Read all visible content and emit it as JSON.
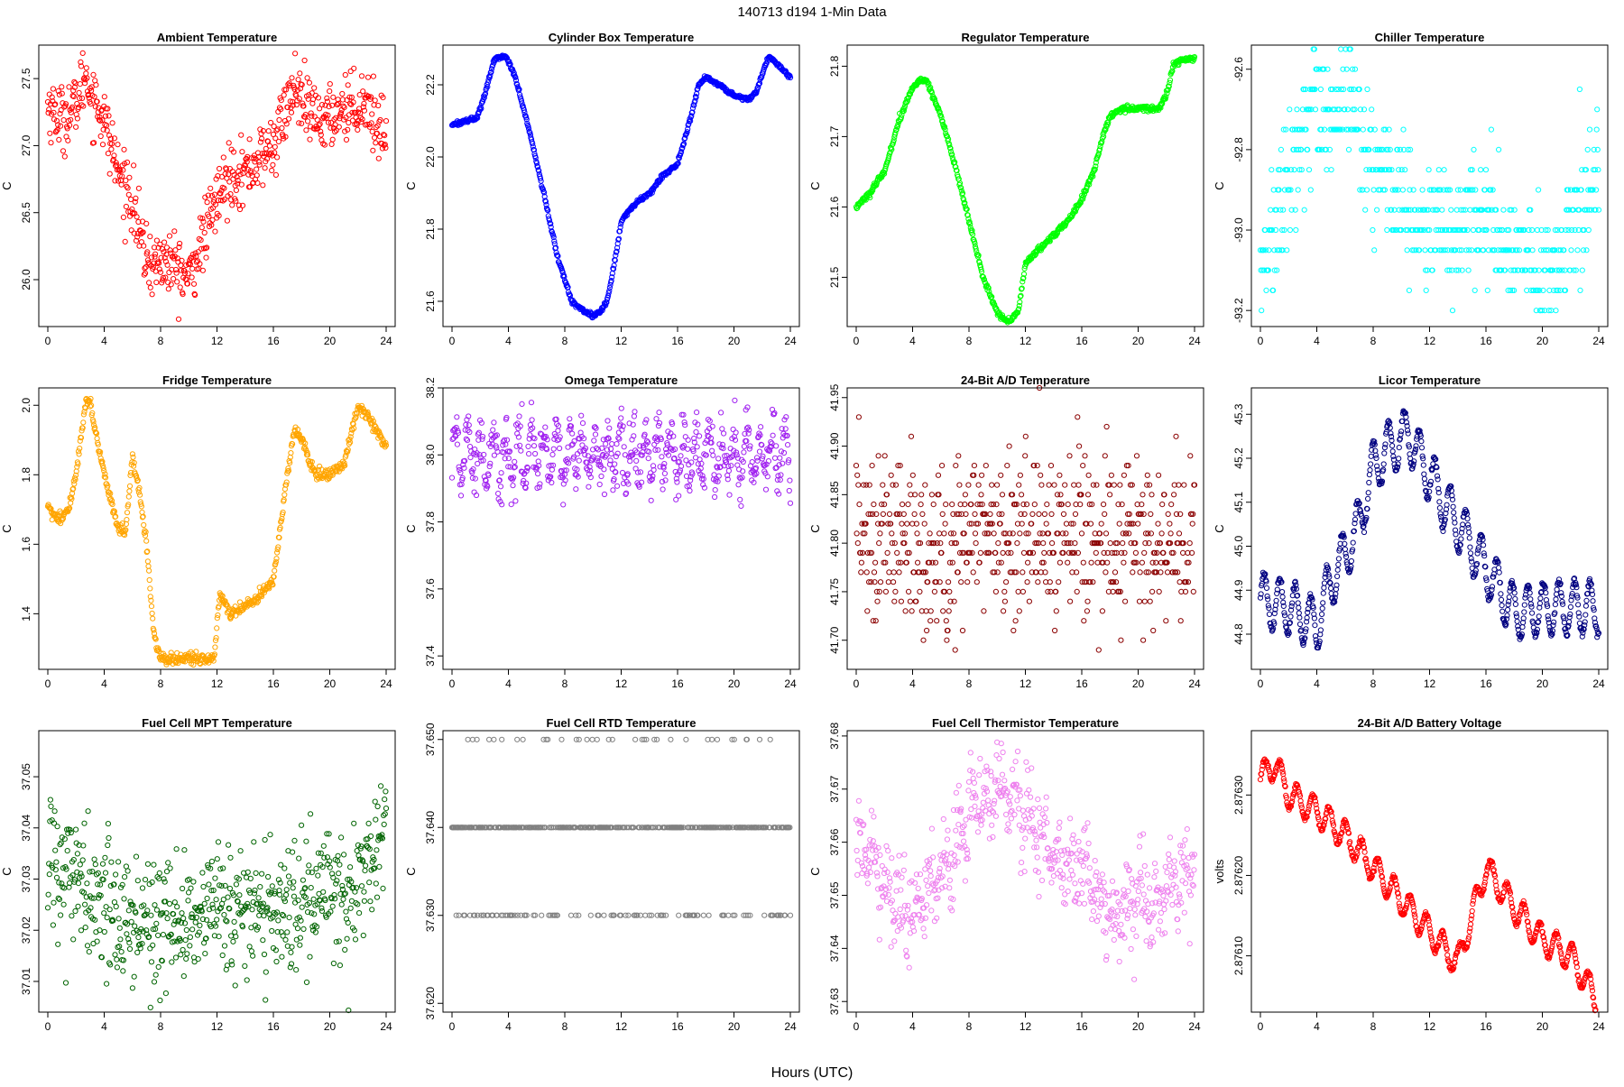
{
  "figure": {
    "title": "140713   d194   1-Min Data",
    "xlabel": "Hours (UTC)"
  },
  "chart_data": [
    {
      "type": "scatter",
      "title": "Ambient Temperature",
      "ylabel": "C",
      "color": "#ff0000",
      "xlim": [
        0,
        24
      ],
      "ylim": [
        25.65,
        27.75
      ],
      "xticks": [
        0,
        4,
        8,
        12,
        16,
        20,
        24
      ],
      "yticks": [
        26.0,
        26.5,
        27.0,
        27.5
      ],
      "ytick_labels": [
        "26.0",
        "26.5",
        "27.0",
        "27.5"
      ],
      "x": [
        0,
        1,
        2,
        2.7,
        3,
        4,
        5,
        6,
        6.8,
        7.5,
        8,
        9,
        10,
        11,
        12,
        13,
        14,
        15,
        16,
        17,
        17.6,
        18,
        19,
        20,
        21,
        22,
        22.7,
        23,
        24
      ],
      "y": [
        27.3,
        27.2,
        27.3,
        27.55,
        27.4,
        27.2,
        26.8,
        26.6,
        26.2,
        26.1,
        26.15,
        26.1,
        26.0,
        26.3,
        26.6,
        26.8,
        26.8,
        26.9,
        27.0,
        27.3,
        27.45,
        27.3,
        27.2,
        27.2,
        27.3,
        27.3,
        27.35,
        27.2,
        27.1
      ],
      "noise": 0.12
    },
    {
      "type": "scatter",
      "title": "Cylinder Box Temperature",
      "ylabel": "C",
      "color": "#0000ff",
      "xlim": [
        0,
        24
      ],
      "ylim": [
        21.53,
        22.31
      ],
      "xticks": [
        0,
        4,
        8,
        12,
        16,
        20,
        24
      ],
      "yticks": [
        21.6,
        21.8,
        22.0,
        22.2
      ],
      "ytick_labels": [
        "21.6",
        "21.8",
        "22.0",
        "22.2"
      ],
      "x": [
        0,
        1,
        1.8,
        2.3,
        3,
        3.8,
        4.5,
        5.5,
        6.5,
        7.5,
        8.5,
        9.5,
        10,
        10.5,
        11,
        11.5,
        12,
        12.5,
        13,
        14,
        15,
        16,
        17,
        17.5,
        18,
        19,
        20,
        21,
        21.6,
        22,
        22.5,
        23,
        23.5,
        24
      ],
      "y": [
        22.09,
        22.1,
        22.11,
        22.17,
        22.27,
        22.28,
        22.22,
        22.07,
        21.9,
        21.72,
        21.6,
        21.57,
        21.56,
        21.57,
        21.6,
        21.7,
        21.82,
        21.85,
        21.87,
        21.9,
        21.95,
        21.98,
        22.12,
        22.2,
        22.22,
        22.2,
        22.17,
        22.16,
        22.18,
        22.23,
        22.28,
        22.26,
        22.24,
        22.22
      ],
      "noise": 0.003
    },
    {
      "type": "scatter",
      "title": "Regulator Temperature",
      "ylabel": "C",
      "color": "#00ff00",
      "xlim": [
        0,
        24
      ],
      "ylim": [
        21.43,
        21.83
      ],
      "xticks": [
        0,
        4,
        8,
        12,
        16,
        20,
        24
      ],
      "yticks": [
        21.5,
        21.6,
        21.7,
        21.8
      ],
      "ytick_labels": [
        "21.5",
        "21.6",
        "21.7",
        "21.8"
      ],
      "x": [
        0,
        1,
        2,
        3,
        4,
        4.5,
        5,
        6,
        7,
        8,
        9,
        10,
        10.5,
        11,
        11.5,
        12,
        13,
        14,
        15,
        16,
        17,
        17.5,
        18,
        19,
        20,
        21,
        21.5,
        22,
        22.5,
        23,
        24
      ],
      "y": [
        21.6,
        21.62,
        21.65,
        21.72,
        21.77,
        21.78,
        21.78,
        21.73,
        21.66,
        21.58,
        21.5,
        21.45,
        21.44,
        21.44,
        21.45,
        21.52,
        21.54,
        21.56,
        21.58,
        21.61,
        21.66,
        21.7,
        21.73,
        21.74,
        21.74,
        21.74,
        21.74,
        21.76,
        21.8,
        21.81,
        21.81
      ],
      "noise": 0.002
    },
    {
      "type": "scatter",
      "title": "Chiller Temperature",
      "ylabel": "C",
      "color": "#00ffff",
      "xlim": [
        0,
        24
      ],
      "ylim": [
        -93.24,
        -92.54
      ],
      "xticks": [
        0,
        4,
        8,
        12,
        16,
        20,
        24
      ],
      "yticks": [
        -93.2,
        -93.0,
        -92.8,
        -92.6
      ],
      "ytick_labels": [
        "-93.2",
        "-93.0",
        "-92.8",
        "-92.6"
      ],
      "x": [
        0,
        1,
        2,
        3,
        4,
        5,
        6,
        7,
        8,
        9,
        10,
        11,
        12,
        13,
        14,
        15,
        16,
        17,
        18,
        19,
        20,
        21,
        22,
        23,
        24
      ],
      "y": [
        -93.1,
        -93.0,
        -92.9,
        -92.75,
        -92.7,
        -92.75,
        -92.65,
        -92.7,
        -92.85,
        -92.9,
        -92.9,
        -93.0,
        -93.0,
        -93.0,
        -93.0,
        -92.95,
        -93.0,
        -93.0,
        -93.05,
        -93.1,
        -93.15,
        -93.1,
        -93.0,
        -92.9,
        -92.85
      ],
      "noise": 0.08,
      "quantize": 0.05
    },
    {
      "type": "scatter",
      "title": "Fridge Temperature",
      "ylabel": "C",
      "color": "#ffa500",
      "xlim": [
        0,
        24
      ],
      "ylim": [
        1.24,
        2.05
      ],
      "xticks": [
        0,
        4,
        8,
        12,
        16,
        20,
        24
      ],
      "yticks": [
        1.4,
        1.6,
        1.8,
        2.0
      ],
      "ytick_labels": [
        "1.4",
        "1.6",
        "1.8",
        "2.0"
      ],
      "x": [
        0,
        0.7,
        1.5,
        2,
        2.7,
        3,
        3.6,
        4.3,
        5,
        5.5,
        6,
        6.5,
        7,
        7.5,
        8,
        9,
        10,
        11,
        11.8,
        12.2,
        13,
        14,
        15,
        16,
        17,
        17.5,
        18,
        19,
        20,
        21,
        22,
        22.5,
        23,
        24
      ],
      "y": [
        1.71,
        1.67,
        1.7,
        1.8,
        2.02,
        2.0,
        1.88,
        1.75,
        1.65,
        1.63,
        1.85,
        1.75,
        1.6,
        1.35,
        1.27,
        1.27,
        1.27,
        1.27,
        1.27,
        1.46,
        1.4,
        1.42,
        1.45,
        1.5,
        1.8,
        1.93,
        1.9,
        1.8,
        1.8,
        1.83,
        2.0,
        1.98,
        1.95,
        1.88
      ],
      "noise": 0.008
    },
    {
      "type": "scatter",
      "title": "Omega Temperature",
      "ylabel": "C",
      "color": "#a020f0",
      "xlim": [
        0,
        24
      ],
      "ylim": [
        37.36,
        38.2
      ],
      "xticks": [
        0,
        4,
        8,
        12,
        16,
        20,
        24
      ],
      "yticks": [
        37.4,
        37.6,
        37.8,
        38.0,
        38.2
      ],
      "ytick_labels": [
        "37.4",
        "37.6",
        "37.8",
        "38.0",
        "38.2"
      ],
      "x": [
        0,
        2,
        4,
        6,
        8,
        10,
        12,
        14,
        16,
        18,
        20,
        22,
        24
      ],
      "y": [
        38.0,
        38.0,
        38.0,
        38.0,
        38.0,
        38.0,
        38.0,
        38.0,
        38.0,
        38.0,
        38.0,
        38.0,
        38.0
      ],
      "noise": 0.04,
      "osc_amp": 0.07,
      "osc_period": 0.9
    },
    {
      "type": "scatter",
      "title": "24-Bit A/D Temperature",
      "ylabel": "C",
      "color": "#8b0000",
      "xlim": [
        0,
        24
      ],
      "ylim": [
        41.67,
        41.96
      ],
      "xticks": [
        0,
        4,
        8,
        12,
        16,
        20,
        24
      ],
      "yticks": [
        41.7,
        41.75,
        41.8,
        41.85,
        41.9,
        41.95
      ],
      "ytick_labels": [
        "41.70",
        "41.75",
        "41.80",
        "41.85",
        "41.90",
        "41.95"
      ],
      "x": [
        0,
        4,
        8,
        12,
        16,
        20,
        24
      ],
      "y": [
        41.8,
        41.8,
        41.8,
        41.81,
        41.81,
        41.8,
        41.8
      ],
      "noise": 0.045,
      "quantize": 0.01
    },
    {
      "type": "scatter",
      "title": "Licor Temperature",
      "ylabel": "C",
      "color": "#000080",
      "xlim": [
        0,
        24
      ],
      "ylim": [
        44.72,
        45.36
      ],
      "xticks": [
        0,
        4,
        8,
        12,
        16,
        20,
        24
      ],
      "yticks": [
        44.8,
        44.9,
        45.0,
        45.1,
        45.2,
        45.3
      ],
      "ytick_labels": [
        "44.8",
        "44.9",
        "45.0",
        "45.1",
        "45.2",
        "45.3"
      ],
      "x": [
        0,
        2,
        4,
        5,
        6,
        7,
        8,
        9,
        10,
        10.5,
        11,
        12,
        13,
        14,
        15,
        16,
        17,
        18,
        19,
        20,
        22,
        24
      ],
      "y": [
        44.88,
        44.86,
        44.82,
        44.92,
        44.98,
        45.05,
        45.18,
        45.22,
        45.24,
        45.26,
        45.22,
        45.16,
        45.1,
        45.05,
        45.0,
        44.95,
        44.9,
        44.85,
        44.85,
        44.86,
        44.86,
        44.86
      ],
      "noise": 0.004,
      "osc_amp": 0.06,
      "osc_period": 1.1
    },
    {
      "type": "scatter",
      "title": "Fuel Cell MPT Temperature",
      "ylabel": "C",
      "color": "#006400",
      "xlim": [
        0,
        24
      ],
      "ylim": [
        37.004,
        37.059
      ],
      "xticks": [
        0,
        4,
        8,
        12,
        16,
        20,
        24
      ],
      "yticks": [
        37.01,
        37.02,
        37.03,
        37.04,
        37.05
      ],
      "ytick_labels": [
        "37.01",
        "37.02",
        "37.03",
        "37.04",
        "37.05"
      ],
      "x": [
        0,
        1,
        2,
        4,
        6,
        8,
        10,
        12,
        14,
        16,
        18,
        20,
        22,
        23,
        24
      ],
      "y": [
        37.034,
        37.03,
        37.028,
        37.025,
        37.022,
        37.022,
        37.023,
        37.025,
        37.024,
        37.025,
        37.026,
        37.027,
        37.03,
        37.036,
        37.042
      ],
      "noise": 0.006
    },
    {
      "type": "scatter",
      "title": "Fuel Cell RTD Temperature",
      "ylabel": "C",
      "color": "#808080",
      "xlim": [
        0,
        24
      ],
      "ylim": [
        37.619,
        37.651
      ],
      "xticks": [
        0,
        4,
        8,
        12,
        16,
        20,
        24
      ],
      "yticks": [
        37.62,
        37.63,
        37.64,
        37.65
      ],
      "ytick_labels": [
        "37.620",
        "37.630",
        "37.640",
        "37.650"
      ],
      "x": [
        0,
        24
      ],
      "y": [
        37.64,
        37.64
      ],
      "levels": [
        37.63,
        37.64,
        37.65
      ],
      "level_weights": [
        0.22,
        0.72,
        0.06
      ]
    },
    {
      "type": "scatter",
      "title": "Fuel Cell Thermistor Temperature",
      "ylabel": "C",
      "color": "#ee82ee",
      "xlim": [
        0,
        24
      ],
      "ylim": [
        37.628,
        37.681
      ],
      "xticks": [
        0,
        4,
        8,
        12,
        16,
        20,
        24
      ],
      "yticks": [
        37.63,
        37.64,
        37.65,
        37.66,
        37.67,
        37.68
      ],
      "ytick_labels": [
        "37.63",
        "37.64",
        "37.65",
        "37.66",
        "37.67",
        "37.68"
      ],
      "x": [
        0,
        1,
        2,
        3,
        4,
        5,
        6,
        7,
        8,
        9,
        10,
        11,
        12,
        13,
        14,
        15,
        16,
        17,
        18,
        19,
        20,
        21,
        22,
        23,
        24
      ],
      "y": [
        37.659,
        37.658,
        37.652,
        37.648,
        37.646,
        37.652,
        37.654,
        37.658,
        37.668,
        37.667,
        37.67,
        37.668,
        37.664,
        37.66,
        37.657,
        37.655,
        37.654,
        37.652,
        37.645,
        37.648,
        37.65,
        37.648,
        37.65,
        37.652,
        37.655
      ],
      "noise": 0.004,
      "osc_amp": 0.003,
      "osc_period": 1.0
    },
    {
      "type": "scatter",
      "title": "24-Bit A/D Battery Voltage",
      "ylabel": "volts",
      "color": "#ff0000",
      "xlim": [
        0,
        24
      ],
      "ylim": [
        2.87603,
        2.87638
      ],
      "xticks": [
        0,
        4,
        8,
        12,
        16,
        20,
        24
      ],
      "yticks": [
        2.8761,
        2.8762,
        2.8763
      ],
      "ytick_labels": [
        "2.87610",
        "2.87620",
        "2.87630"
      ],
      "x": [
        0,
        1,
        2,
        4,
        6,
        8,
        10,
        12,
        14,
        16,
        18,
        20,
        22,
        24
      ],
      "y": [
        2.87632,
        2.87634,
        2.8763,
        2.87628,
        2.87625,
        2.87621,
        2.87617,
        2.87613,
        2.87609,
        2.87621,
        2.87616,
        2.87612,
        2.8761,
        2.87604
      ],
      "noise": 1.5e-06,
      "osc_amp": 1.8e-05,
      "osc_period": 1.15
    }
  ]
}
